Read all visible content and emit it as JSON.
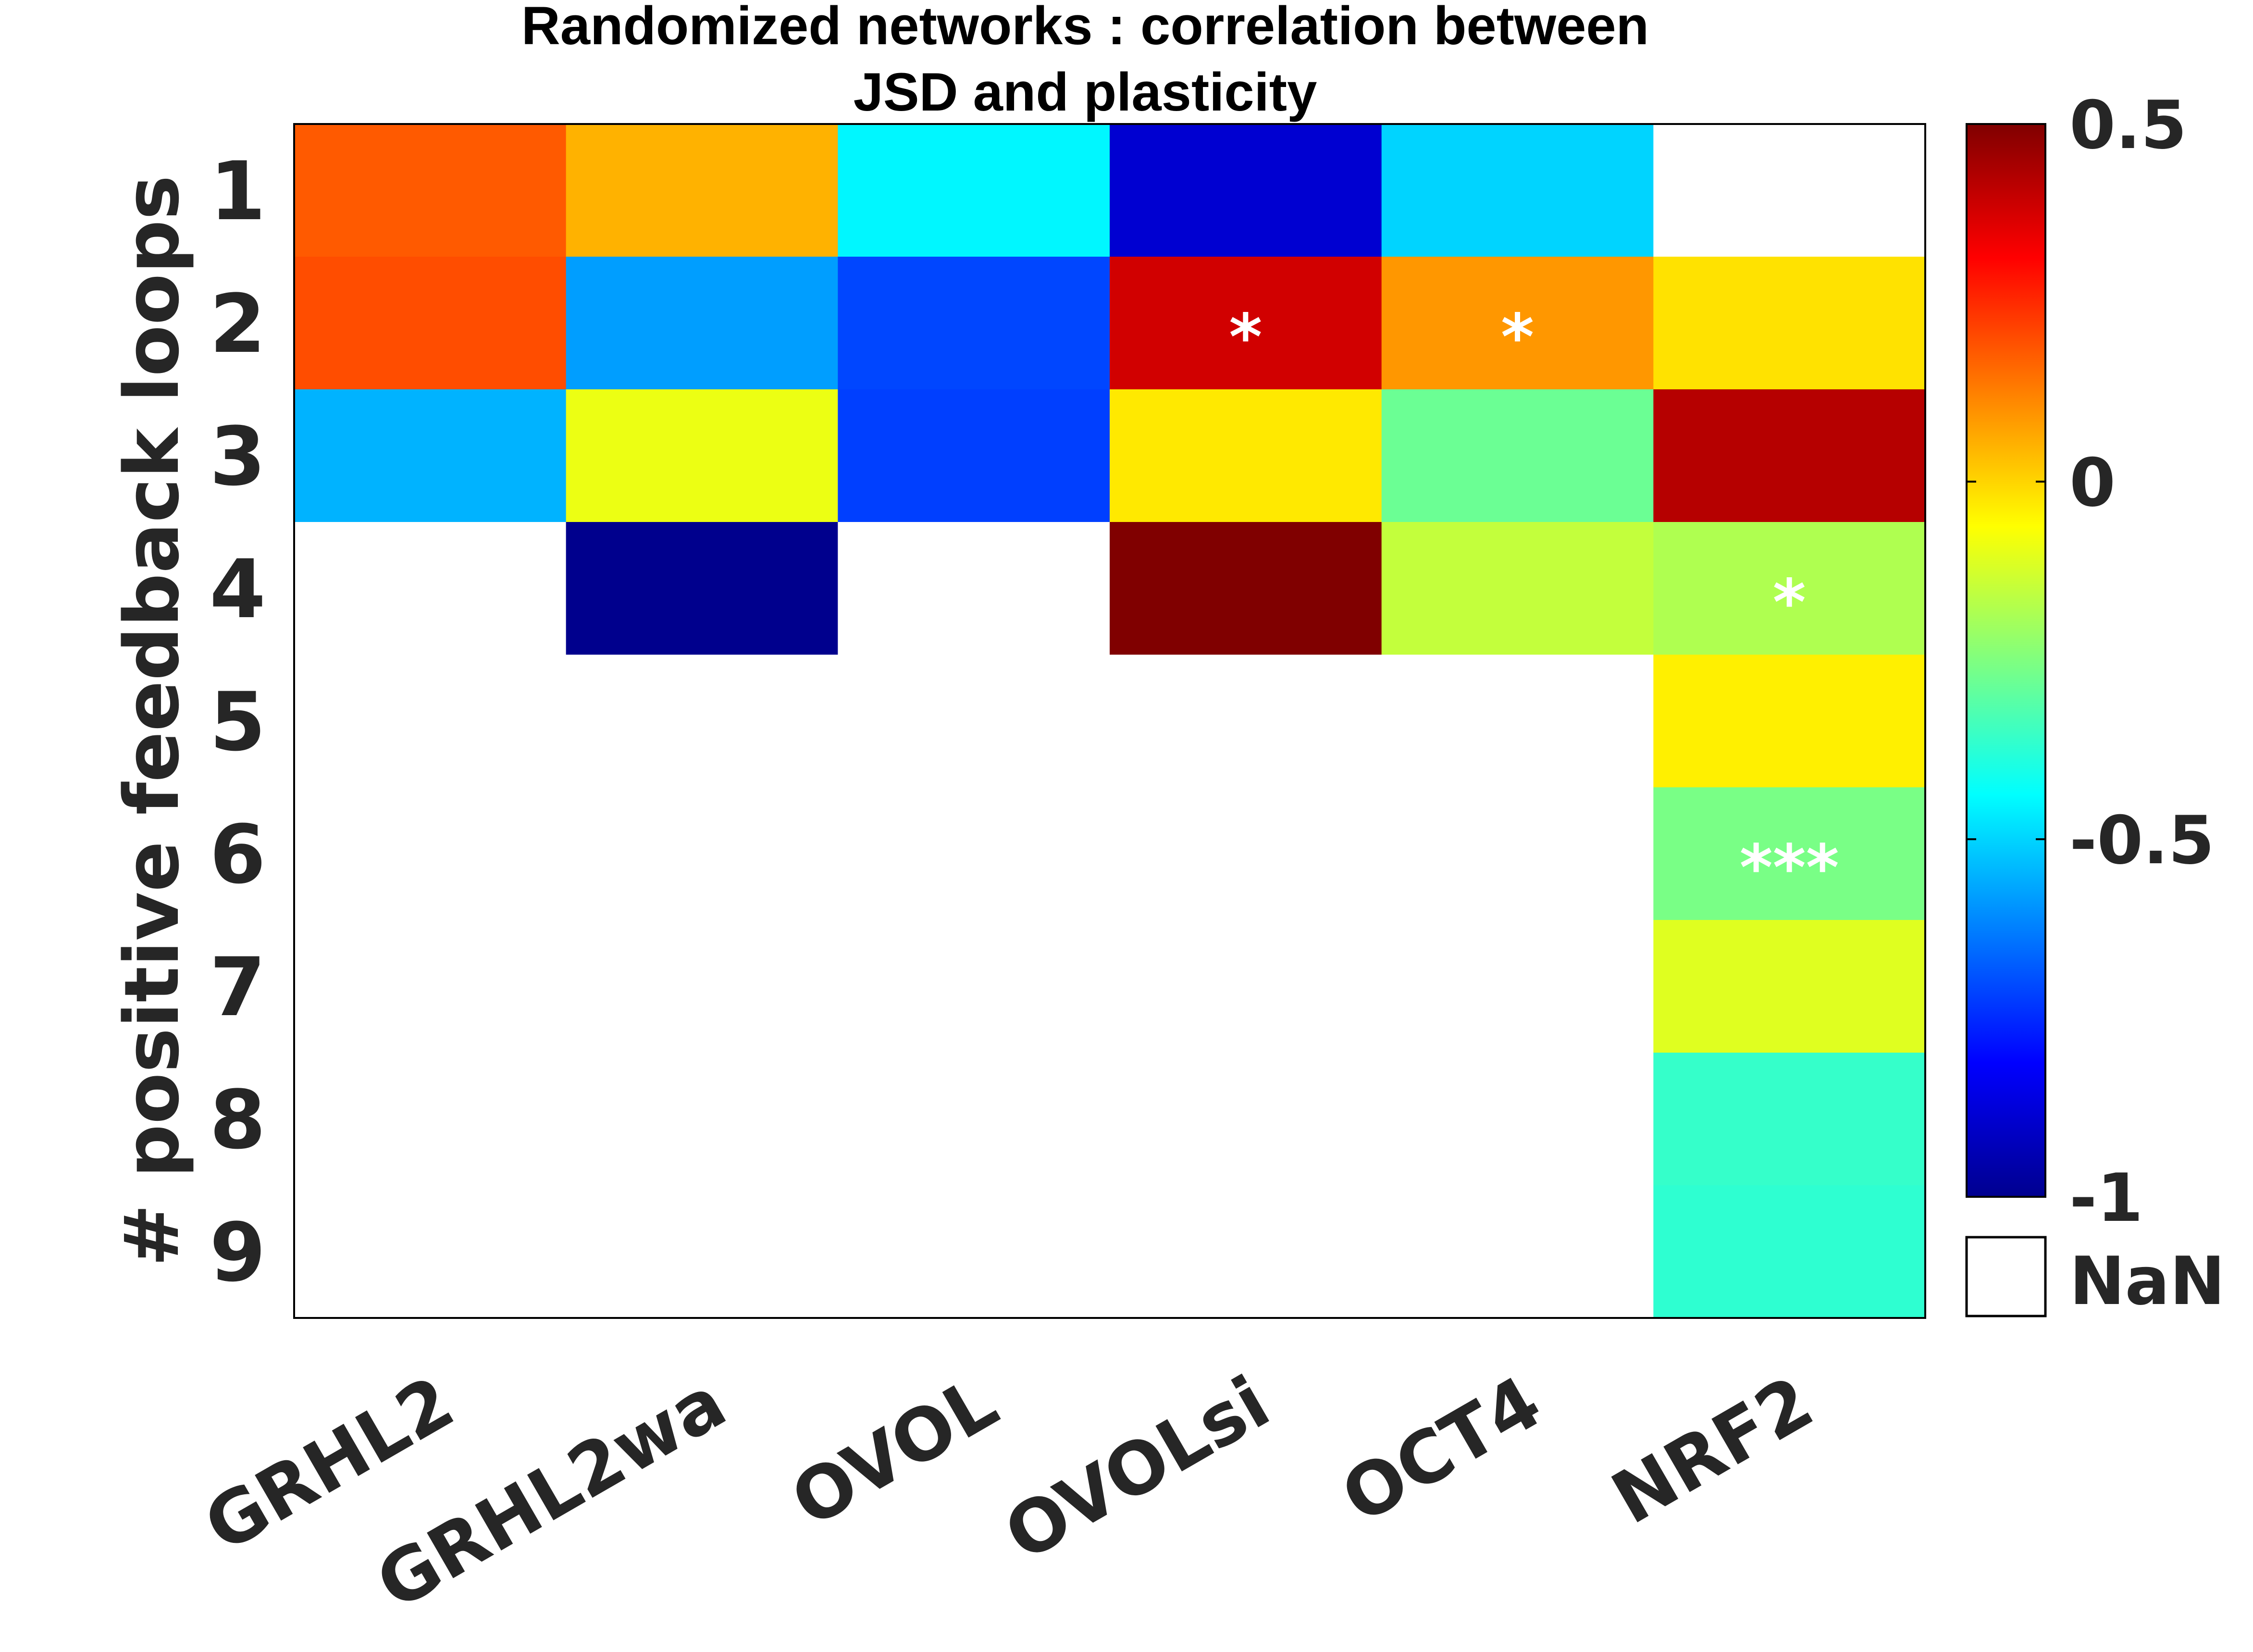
{
  "chart_data": {
    "type": "heatmap",
    "title_lines": [
      "Randomized networks : correlation between",
      "JSD and plasticity"
    ],
    "xlabel": "",
    "ylabel": "# positive feedback loops",
    "x_categories": [
      "GRHL2",
      "GRHL2wa",
      "OVOL",
      "OVOLsi",
      "OCT4",
      "NRF2"
    ],
    "y_categories": [
      "1",
      "2",
      "3",
      "4",
      "5",
      "6",
      "7",
      "8",
      "9"
    ],
    "values": [
      [
        0.18,
        0.05,
        -0.45,
        -0.88,
        -0.5,
        null
      ],
      [
        0.2,
        -0.58,
        -0.71,
        0.38,
        0.09,
        -0.02
      ],
      [
        -0.55,
        -0.09,
        -0.72,
        -0.03,
        -0.28,
        0.42
      ],
      [
        null,
        -0.98,
        null,
        0.5,
        -0.15,
        -0.18
      ],
      [
        null,
        null,
        null,
        null,
        null,
        -0.04
      ],
      [
        null,
        null,
        null,
        null,
        null,
        -0.26
      ],
      [
        null,
        null,
        null,
        null,
        null,
        -0.11
      ],
      [
        null,
        null,
        null,
        null,
        null,
        -0.36
      ],
      [
        null,
        null,
        null,
        null,
        null,
        -0.37
      ]
    ],
    "significance": [
      [
        "",
        "",
        "",
        "",
        "",
        ""
      ],
      [
        "",
        "",
        "",
        "*",
        "*",
        ""
      ],
      [
        "",
        "",
        "",
        "",
        "",
        ""
      ],
      [
        "",
        "",
        "",
        "",
        "",
        "*"
      ],
      [
        "",
        "",
        "",
        "",
        "",
        ""
      ],
      [
        "",
        "",
        "",
        "",
        "",
        "***"
      ],
      [
        "",
        "",
        "",
        "",
        "",
        ""
      ],
      [
        "",
        "",
        "",
        "",
        "",
        ""
      ],
      [
        "",
        "",
        "",
        "",
        "",
        ""
      ]
    ],
    "colorbar": {
      "colormap": "jet",
      "range": [
        -1,
        0.5
      ],
      "ticks": [
        0.5,
        0,
        -0.5,
        -1
      ],
      "tick_labels": [
        "0.5",
        "0",
        "-0.5",
        "-1"
      ],
      "nan_label": "NaN",
      "nan_color": "#ffffff"
    },
    "grid": false
  }
}
